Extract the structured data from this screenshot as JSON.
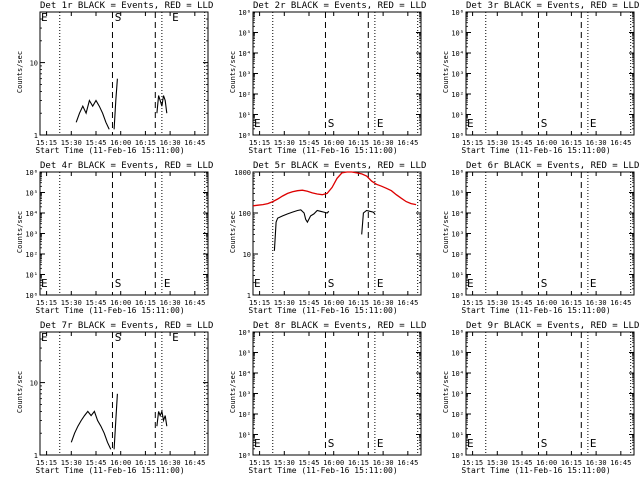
{
  "x_ticks": [
    "15:15",
    "15:30",
    "15:45",
    "16:00",
    "16:15",
    "16:30",
    "16:45"
  ],
  "x_label": "Start Time (11-Feb-16 15:11:00)",
  "y_label": "Counts/sec",
  "markers": {
    "E": "E",
    "S": "S"
  },
  "colors": {
    "events": "#000000",
    "lld": "#dd0000"
  },
  "chart_data": [
    {
      "type": "line",
      "title": "Det 1r BLACK = Events, RED = LLD",
      "ylim": [
        1,
        50
      ],
      "log": true,
      "y_tick_labels": [
        "1",
        "10"
      ],
      "y_tick_values": [
        1,
        10
      ],
      "s_time": "16:00",
      "e_times": [
        "15:11",
        "16:30"
      ],
      "dotted": [
        "15:23",
        "16:25",
        "16:51"
      ],
      "dashed": [
        "15:55",
        "16:21"
      ],
      "series": [
        {
          "kind": "events",
          "x": [
            "15:33",
            "15:35",
            "15:37",
            "15:39",
            "15:41",
            "15:43",
            "15:45",
            "15:47",
            "15:49",
            "15:51",
            "15:53"
          ],
          "y": [
            1.5,
            2,
            2.5,
            2,
            3,
            2.5,
            3,
            2.5,
            2,
            1.5,
            1.2
          ]
        },
        {
          "kind": "events",
          "x": [
            "15:56",
            "15:57",
            "15:58"
          ],
          "y": [
            1.2,
            3,
            6
          ]
        },
        {
          "kind": "events",
          "x": [
            "16:22",
            "16:23",
            "16:24",
            "16:25",
            "16:26",
            "16:27",
            "16:28"
          ],
          "y": [
            2,
            3.5,
            3,
            2.5,
            3.5,
            3,
            2
          ]
        }
      ]
    },
    {
      "type": "line",
      "title": "Det 2r BLACK = Events, RED = LLD",
      "ylim": [
        1,
        1000000
      ],
      "log": true,
      "y_tick_labels": [
        "10⁰",
        "10¹",
        "10²",
        "10³",
        "10⁴",
        "10⁵",
        "10⁶"
      ],
      "y_tick_values": [
        1,
        10,
        100,
        1000,
        10000,
        100000,
        1000000
      ],
      "s_time": "16:00",
      "e_times": [
        "15:11",
        "16:25"
      ],
      "dotted": [
        "15:23",
        "16:25",
        "16:51"
      ],
      "dashed": [
        "15:55",
        "16:21"
      ],
      "series": []
    },
    {
      "type": "line",
      "title": "Det 3r BLACK = Events, RED = LLD",
      "ylim": [
        1,
        1000000
      ],
      "log": true,
      "y_tick_labels": [
        "10⁰",
        "10¹",
        "10²",
        "10³",
        "10⁴",
        "10⁵",
        "10⁶"
      ],
      "y_tick_values": [
        1,
        10,
        100,
        1000,
        10000,
        100000,
        1000000
      ],
      "s_time": "16:00",
      "e_times": [
        "15:11",
        "16:25"
      ],
      "dotted": [
        "15:23",
        "16:25",
        "16:51"
      ],
      "dashed": [
        "15:55",
        "16:21"
      ],
      "series": []
    },
    {
      "type": "line",
      "title": "Det 4r BLACK = Events, RED = LLD",
      "ylim": [
        1,
        1000000
      ],
      "log": true,
      "y_tick_labels": [
        "10⁰",
        "10¹",
        "10²",
        "10³",
        "10⁴",
        "10⁵",
        "10⁶"
      ],
      "y_tick_values": [
        1,
        10,
        100,
        1000,
        10000,
        100000,
        1000000
      ],
      "s_time": "16:00",
      "e_times": [
        "15:11",
        "16:25"
      ],
      "dotted": [
        "15:23",
        "16:25",
        "16:51"
      ],
      "dashed": [
        "15:55",
        "16:21"
      ],
      "series": []
    },
    {
      "type": "line",
      "title": "Det 5r BLACK = Events, RED = LLD",
      "ylim": [
        1,
        1000
      ],
      "log": true,
      "y_tick_labels": [
        "1",
        "10",
        "100",
        "1000"
      ],
      "y_tick_values": [
        1,
        10,
        100,
        1000
      ],
      "s_time": "16:00",
      "e_times": [
        "15:11",
        "16:25"
      ],
      "dotted": [
        "15:23",
        "16:25",
        "16:51"
      ],
      "dashed": [
        "15:55",
        "16:21"
      ],
      "series": [
        {
          "kind": "lld",
          "x": [
            "15:11",
            "15:14",
            "15:17",
            "15:20",
            "15:23",
            "15:26",
            "15:29",
            "15:32",
            "15:35",
            "15:38",
            "15:41",
            "15:44",
            "15:47",
            "15:50",
            "15:53",
            "15:56",
            "15:59",
            "16:02",
            "16:05",
            "16:08",
            "16:11",
            "16:14",
            "16:17",
            "16:20",
            "16:23",
            "16:26",
            "16:29",
            "16:32",
            "16:35",
            "16:38",
            "16:41",
            "16:44",
            "16:47",
            "16:50"
          ],
          "y": [
            150,
            155,
            160,
            170,
            190,
            220,
            260,
            300,
            330,
            350,
            360,
            340,
            310,
            290,
            280,
            300,
            420,
            700,
            950,
            1000,
            1000,
            950,
            900,
            800,
            600,
            500,
            450,
            400,
            350,
            280,
            230,
            190,
            170,
            160
          ]
        },
        {
          "kind": "events",
          "x": [
            "15:24",
            "15:25",
            "15:26",
            "15:29",
            "15:32",
            "15:35",
            "15:38",
            "15:40",
            "15:42",
            "15:43",
            "15:44",
            "15:46",
            "15:48",
            "15:50",
            "15:52",
            "15:54",
            "15:56",
            "15:57"
          ],
          "y": [
            12,
            60,
            75,
            85,
            95,
            105,
            115,
            120,
            100,
            70,
            60,
            85,
            95,
            115,
            110,
            105,
            100,
            110
          ]
        },
        {
          "kind": "events",
          "x": [
            "16:17",
            "16:18",
            "16:20",
            "16:22",
            "16:24",
            "16:25"
          ],
          "y": [
            30,
            100,
            115,
            110,
            105,
            95
          ]
        }
      ]
    },
    {
      "type": "line",
      "title": "Det 6r BLACK = Events, RED = LLD",
      "ylim": [
        1,
        1000000
      ],
      "log": true,
      "y_tick_labels": [
        "10⁰",
        "10¹",
        "10²",
        "10³",
        "10⁴",
        "10⁵",
        "10⁶"
      ],
      "y_tick_values": [
        1,
        10,
        100,
        1000,
        10000,
        100000,
        1000000
      ],
      "s_time": "16:00",
      "e_times": [
        "15:11",
        "16:25"
      ],
      "dotted": [
        "15:23",
        "16:25",
        "16:51"
      ],
      "dashed": [
        "15:55",
        "16:21"
      ],
      "series": []
    },
    {
      "type": "line",
      "title": "Det 7r BLACK = Events, RED = LLD",
      "ylim": [
        1,
        50
      ],
      "log": true,
      "y_tick_labels": [
        "1",
        "10"
      ],
      "y_tick_values": [
        1,
        10
      ],
      "s_time": "16:00",
      "e_times": [
        "15:11",
        "16:30"
      ],
      "dotted": [
        "15:23",
        "16:25",
        "16:51"
      ],
      "dashed": [
        "15:55",
        "16:21"
      ],
      "series": [
        {
          "kind": "events",
          "x": [
            "15:30",
            "15:32",
            "15:34",
            "15:36",
            "15:38",
            "15:40",
            "15:42",
            "15:44",
            "15:46",
            "15:48",
            "15:50",
            "15:52",
            "15:54"
          ],
          "y": [
            1.5,
            2,
            2.5,
            3,
            3.5,
            4,
            3.5,
            4,
            3,
            2.5,
            2,
            1.5,
            1.2
          ]
        },
        {
          "kind": "events",
          "x": [
            "15:56",
            "15:57",
            "15:58"
          ],
          "y": [
            1.2,
            3,
            7
          ]
        },
        {
          "kind": "events",
          "x": [
            "16:22",
            "16:23",
            "16:24",
            "16:25",
            "16:26",
            "16:27",
            "16:28"
          ],
          "y": [
            2.5,
            4,
            3.5,
            4,
            3,
            3.5,
            2.5
          ]
        }
      ]
    },
    {
      "type": "line",
      "title": "Det 8r BLACK = Events, RED = LLD",
      "ylim": [
        1,
        1000000
      ],
      "log": true,
      "y_tick_labels": [
        "10⁰",
        "10¹",
        "10²",
        "10³",
        "10⁴",
        "10⁵",
        "10⁶"
      ],
      "y_tick_values": [
        1,
        10,
        100,
        1000,
        10000,
        100000,
        1000000
      ],
      "s_time": "16:00",
      "e_times": [
        "15:11",
        "16:25"
      ],
      "dotted": [
        "15:23",
        "16:25",
        "16:51"
      ],
      "dashed": [
        "15:55",
        "16:21"
      ],
      "series": []
    },
    {
      "type": "line",
      "title": "Det 9r BLACK = Events, RED = LLD",
      "ylim": [
        1,
        1000000
      ],
      "log": true,
      "y_tick_labels": [
        "10⁰",
        "10¹",
        "10²",
        "10³",
        "10⁴",
        "10⁵",
        "10⁶"
      ],
      "y_tick_values": [
        1,
        10,
        100,
        1000,
        10000,
        100000,
        1000000
      ],
      "s_time": "16:00",
      "e_times": [
        "15:11",
        "16:25"
      ],
      "dotted": [
        "15:23",
        "16:25",
        "16:51"
      ],
      "dashed": [
        "15:55",
        "16:21"
      ],
      "series": []
    }
  ]
}
